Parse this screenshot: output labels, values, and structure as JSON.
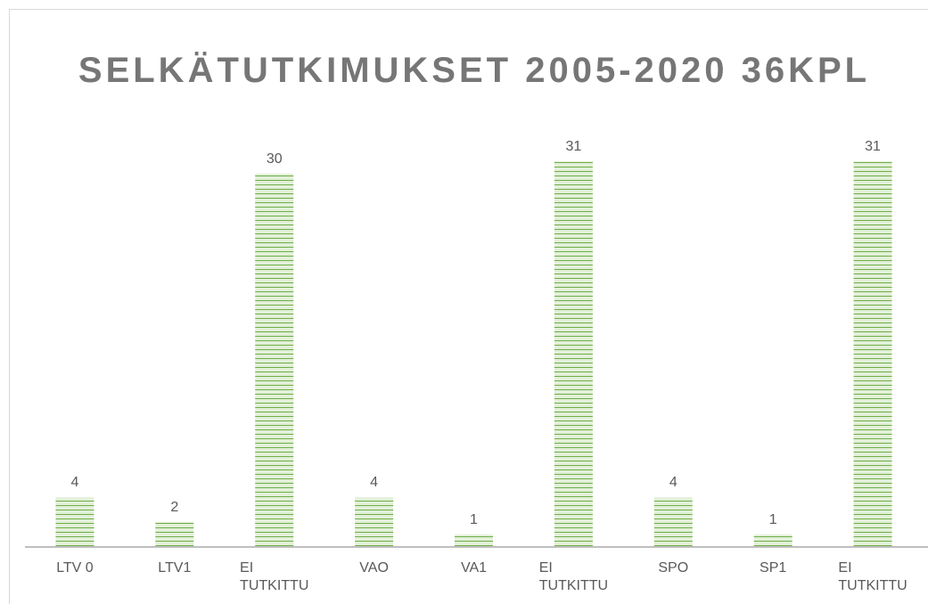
{
  "chart_data": {
    "type": "bar",
    "title": "SELKÄTUTKIMUKSET 2005-2020 36KPL",
    "categories": [
      "LTV 0",
      "LTV1",
      "EI TUTKITTU",
      "VAO",
      "VA1",
      "EI TUTKITTU",
      "SPO",
      "SP1",
      "EI TUTKITTU"
    ],
    "values": [
      4,
      2,
      30,
      4,
      1,
      31,
      4,
      1,
      31
    ],
    "color": "#70ad47",
    "ylim": [
      0,
      35
    ]
  }
}
